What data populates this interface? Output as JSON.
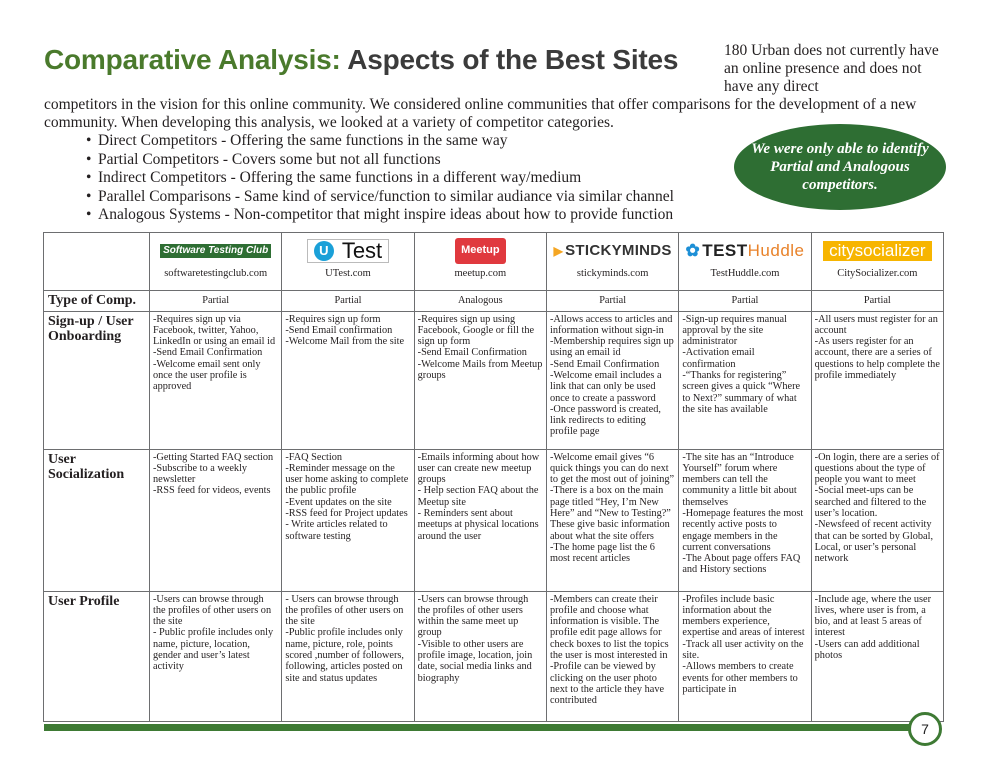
{
  "title_part1": "Comparative Analysis:",
  "title_part2": "Aspects of the Best Sites",
  "side_text": "180 Urban does not currently have an online presence and does not have any direct",
  "intro_text": "competitors in the vision for this online community.  We considered online communities that offer comparisons for the development of a new community.  When developing this analysis, we looked at a variety of competitor categories.",
  "bullets": [
    "Direct Competitors - Offering the same functions in the same way",
    "Partial Competitors - Covers some but not all functions",
    "Indirect Competitors - Offering the same functions in a different way/medium",
    "Parallel Comparisons - Same kind of service/function to similar audiance via similar channel",
    "Analogous Systems - Non-competitor that might inspire ideas about how to provide function"
  ],
  "callout": "We were only able to identify Partial and Analogous competitors.",
  "logos": {
    "stc": "Software Testing Club",
    "utest_u": "U",
    "utest": "Test",
    "meetup": "Meetup",
    "sticky": "STICKYMINDS",
    "th_a": "TEST",
    "th_b": "Huddle",
    "cs": "citysocializer"
  },
  "sites": [
    "softwaretestingclub.com",
    "UTest.com",
    "meetup.com",
    "stickyminds.com",
    "TestHuddle.com",
    "CitySocializer.com"
  ],
  "row_headers": [
    "Type of Comp.",
    "Sign-up / User Onboarding",
    "User Socialization",
    "User Profile"
  ],
  "types": [
    "Partial",
    "Partial",
    "Analogous",
    "Partial",
    "Partial",
    "Partial"
  ],
  "signup": [
    "-Requires sign up via Facebook, twitter, Yahoo, LinkedIn or using an email id\n-Send Email Confirmation\n-Welcome email sent only once the user profile is approved",
    "-Requires sign up form\n-Send Email confirmation\n-Welcome Mail from the site",
    "-Requires sign up using Facebook, Google or fill the sign up form\n-Send Email Confirmation\n-Welcome Mails from Meetup groups",
    "-Allows access to articles and information without sign-in\n-Membership requires sign up using an email id\n-Send Email Confirmation\n-Welcome email includes a link that can only be used once to create a password\n-Once password is created, link redirects to editing profile page",
    "-Sign-up requires manual approval by the site administrator\n-Activation email confirmation\n-“Thanks for registering” screen gives a quick “Where to Next?” summary of what the site has available",
    "-All users must register for an account\n-As users register for an account, there are a series of questions to help complete the profile immediately"
  ],
  "socialization": [
    "-Getting Started FAQ section\n-Subscribe to a weekly newsletter\n-RSS feed for videos, events",
    "-FAQ Section\n-Reminder message on the user home asking to complete the public profile\n-Event updates on the site\n-RSS feed for Project updates\n- Write articles related to software testing",
    "-Emails informing about how user can create new meetup groups\n- Help section FAQ about the Meetup site\n- Reminders sent about meetups at physical locations around the user",
    "-Welcome email gives “6 quick things you can do next to get the most out of joining”\n-There is a box on the main page titled “Hey, I’m New Here” and “New to Testing?”  These give basic information about what the site offers\n-The home page list the 6 most recent articles",
    "-The site has an “Introduce Yourself” forum where members can tell the community a little bit about themselves\n-Homepage features the most recently active posts to engage members in the current conversations\n-The About page offers FAQ and History sections",
    "-On login, there are a series of questions about the type of people you want to meet\n-Social meet-ups can be searched and filtered to the user’s location.\n-Newsfeed of recent activity that can be sorted by Global, Local, or user’s personal network"
  ],
  "profile": [
    "-Users can browse through the profiles of other users on the site\n- Public profile includes only name, picture, location, gender and user’s latest activity",
    "- Users can browse through the profiles of other users on the site\n-Public profile includes only name, picture, role, points scored ,number of followers, following, articles posted on site and status updates",
    "-Users can browse through the profiles of other users within the same meet up group\n-Visible to other users are profile image, location, join date, social media links and biography",
    "-Members can create their profile and choose what information is visible.  The profile edit page allows for check boxes to list the topics the user is most interested in\n-Profile can be viewed by clicking on the user photo next to the article they have contributed",
    "-Profiles include basic information about the members experience, expertise and areas of interest\n-Track all user activity on the site.\n-Allows members to create events for other members to participate in",
    "-Include age, where the user lives, where user is from, a bio, and at least 5 areas of interest\n-Users can add additional photos"
  ],
  "page_number": "7",
  "colors": {
    "green": "#4a7a2c",
    "dark_green": "#2e6e33",
    "bar": "#3e7a34"
  }
}
